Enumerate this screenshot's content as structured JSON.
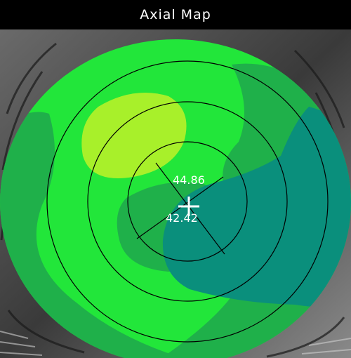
{
  "window": {
    "title": "Axial Map"
  },
  "map": {
    "steep_k": "44.86",
    "flat_k": "42.42",
    "colors": {
      "background_green": "#22e63a",
      "mid_green": "#1fb04a",
      "steep_yellow": "#a8f02a",
      "flat_teal": "#0a8f7c",
      "ring_line": "#000000",
      "marker": "#ffffff"
    }
  }
}
